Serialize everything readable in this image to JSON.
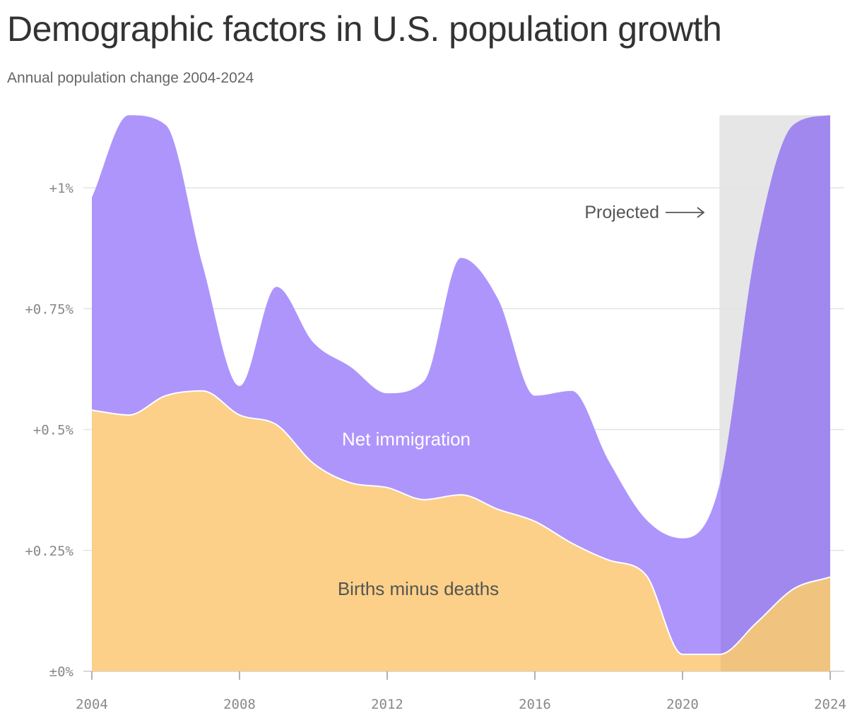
{
  "chart_data": {
    "type": "area",
    "stacked": true,
    "title": "Demographic factors in U.S. population growth",
    "subtitle": "Annual population change 2004-2024",
    "x": [
      2004,
      2005,
      2006,
      2007,
      2008,
      2009,
      2010,
      2011,
      2012,
      2013,
      2014,
      2015,
      2016,
      2017,
      2018,
      2019,
      2020,
      2021,
      2022,
      2023,
      2024
    ],
    "x_ticks": [
      2004,
      2008,
      2012,
      2016,
      2020,
      2024
    ],
    "x_tick_labels": [
      "2004",
      "2008",
      "2012",
      "2016",
      "2020",
      "2024"
    ],
    "y_ticks": [
      0,
      0.25,
      0.5,
      0.75,
      1.0
    ],
    "y_tick_labels": [
      "±0%",
      "+0.25%",
      "+0.5%",
      "+0.75%",
      "+1%"
    ],
    "ylim": [
      0,
      1.15
    ],
    "xlim": [
      2004,
      2024
    ],
    "grid": "horizontal",
    "series": [
      {
        "name": "Births minus deaths",
        "color": "#fcd088",
        "projected_color": "#f0c47e",
        "values": [
          0.54,
          0.53,
          0.57,
          0.58,
          0.53,
          0.51,
          0.43,
          0.39,
          0.38,
          0.355,
          0.365,
          0.335,
          0.31,
          0.265,
          0.23,
          0.2,
          0.035,
          0.035,
          0.1,
          0.17,
          0.195
        ]
      },
      {
        "name": "Net immigration",
        "color": "#ae95fc",
        "projected_color": "#a188ef",
        "values": [
          0.44,
          0.62,
          0.56,
          0.26,
          0.06,
          0.285,
          0.25,
          0.24,
          0.195,
          0.245,
          0.49,
          0.435,
          0.26,
          0.315,
          0.205,
          0.115,
          0.24,
          0.35,
          0.78,
          0.96,
          0.955
        ]
      }
    ],
    "projected_from": 2021,
    "annotation": {
      "label": "Projected",
      "arrow": "→"
    },
    "colors": {
      "projected_band": "#e6e6e6",
      "grid": "#e3e3e3",
      "axis": "#cccccc",
      "immigration_label": "#ffffff",
      "births_label": "#555555"
    }
  }
}
